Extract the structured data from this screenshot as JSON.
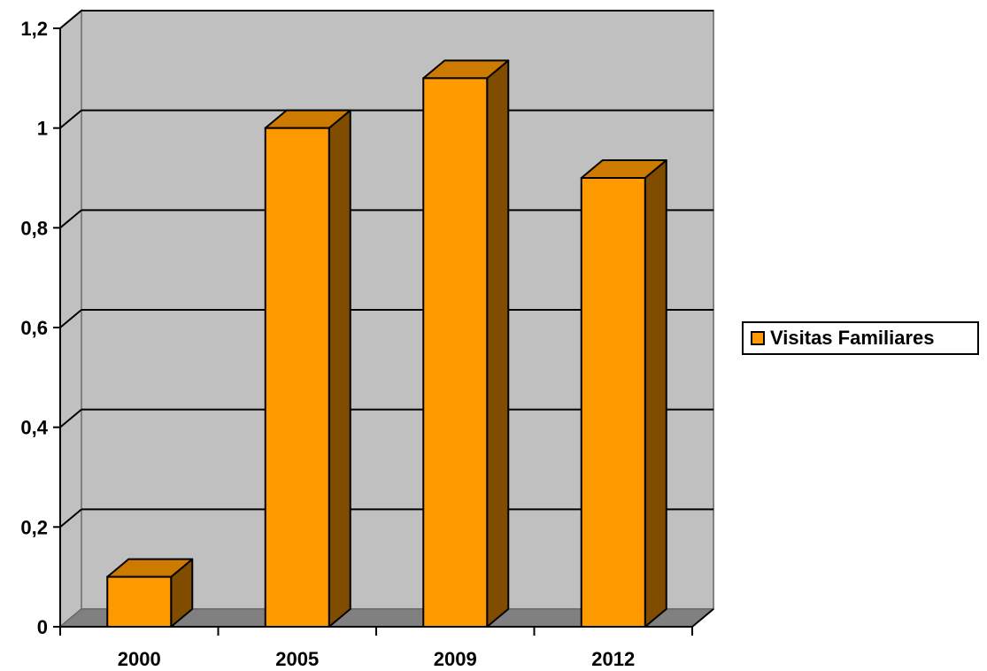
{
  "chart_data": {
    "type": "bar",
    "categories": [
      "2000",
      "2005",
      "2009",
      "2012"
    ],
    "series": [
      {
        "name": "Visitas Familiares",
        "values": [
          0.1,
          1.0,
          1.1,
          0.9
        ]
      }
    ],
    "ylim": [
      0,
      1.2
    ],
    "y_ticks": [
      "0",
      "0,2",
      "0,4",
      "0,6",
      "0,8",
      "1",
      "1,2"
    ],
    "grid": true,
    "legend_position": "right",
    "style": "3d",
    "colors": {
      "bar_front": "#ff9900",
      "bar_side": "#7f4c00",
      "bar_top": "#cc7a00",
      "wall": "#c0c0c0",
      "floor": "#808080",
      "gridline": "#000000"
    }
  }
}
